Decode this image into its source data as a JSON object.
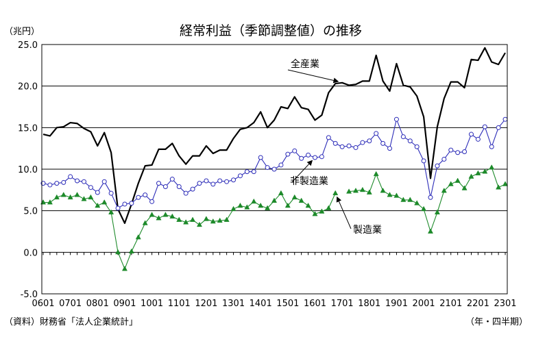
{
  "chart_data": {
    "type": "line",
    "title": "経常利益（季節調整値）の推移",
    "ylabel": "（兆円）",
    "xlabel": "（年・四半期）",
    "source": "（資料）財務省「法人企業統計」",
    "ylim": [
      -5,
      25
    ],
    "yticks": [
      25.0,
      20.0,
      15.0,
      10.0,
      5.0,
      0.0,
      -5.0
    ],
    "xticks": [
      "0601",
      "0701",
      "0801",
      "0901",
      "1001",
      "1101",
      "1201",
      "1301",
      "1401",
      "1501",
      "1601",
      "1701",
      "1801",
      "1901",
      "2001",
      "2101",
      "2201",
      "2301"
    ],
    "grid": true,
    "series": [
      {
        "name": "全産業",
        "color": "#000000",
        "marker": "none",
        "values": [
          14.2,
          14.0,
          15.0,
          15.1,
          15.6,
          15.5,
          14.9,
          14.5,
          12.8,
          14.4,
          12.0,
          5.2,
          3.5,
          5.8,
          8.3,
          10.4,
          10.5,
          12.4,
          12.4,
          13.1,
          11.6,
          10.6,
          11.6,
          11.6,
          12.8,
          11.9,
          12.3,
          12.3,
          13.7,
          14.8,
          15.0,
          15.6,
          16.9,
          15.0,
          15.9,
          17.5,
          17.3,
          18.7,
          17.4,
          17.2,
          15.9,
          16.5,
          19.2,
          20.3,
          20.4,
          20.1,
          20.2,
          20.6,
          20.6,
          23.7,
          20.6,
          19.4,
          22.7,
          20.1,
          19.9,
          18.8,
          16.3,
          8.9,
          15.1,
          18.5,
          20.5,
          20.5,
          19.8,
          23.2,
          23.1,
          24.6,
          22.9,
          22.6,
          24.0
        ]
      },
      {
        "name": "非製造業",
        "color": "#2b2bb8",
        "marker": "circle",
        "values": [
          8.3,
          8.1,
          8.3,
          8.4,
          9.1,
          8.6,
          8.5,
          7.8,
          7.2,
          8.5,
          7.1,
          5.3,
          5.8,
          5.9,
          6.6,
          6.9,
          6.1,
          8.3,
          7.9,
          8.8,
          7.9,
          7.1,
          7.6,
          8.3,
          8.6,
          8.2,
          8.6,
          8.5,
          8.7,
          9.2,
          9.7,
          9.7,
          11.4,
          10.2,
          10.0,
          10.5,
          11.8,
          12.2,
          11.3,
          11.7,
          11.4,
          11.5,
          13.8,
          13.1,
          12.7,
          12.8,
          12.6,
          13.2,
          13.4,
          14.3,
          13.1,
          12.5,
          16.0,
          13.9,
          13.4,
          12.7,
          11.0,
          6.6,
          10.4,
          11.2,
          12.3,
          12.0,
          12.1,
          14.2,
          13.6,
          15.1,
          12.7,
          15.0,
          16.0
        ]
      },
      {
        "name": "製造業",
        "color": "#1d8a2a",
        "marker": "triangle",
        "values": [
          6.0,
          6.0,
          6.6,
          6.9,
          6.6,
          6.9,
          6.4,
          6.6,
          5.6,
          6.0,
          4.8,
          0.0,
          -2.0,
          0.1,
          1.8,
          3.5,
          4.5,
          4.1,
          4.5,
          4.3,
          3.9,
          3.6,
          3.9,
          3.3,
          4.0,
          3.7,
          3.8,
          3.9,
          5.2,
          5.6,
          5.4,
          6.1,
          5.6,
          5.3,
          6.2,
          7.1,
          5.6,
          6.6,
          6.2,
          5.6,
          4.6,
          4.9,
          5.3,
          7.1,
          null,
          7.3,
          7.4,
          7.5,
          7.2,
          9.4,
          7.4,
          6.9,
          6.8,
          6.3,
          6.3,
          5.9,
          5.2,
          2.5,
          4.8,
          7.4,
          8.2,
          8.6,
          7.7,
          9.1,
          9.5,
          9.7,
          10.2,
          7.8,
          8.2
        ]
      }
    ],
    "annotations": [
      {
        "text": "全産業",
        "series": "全産業"
      },
      {
        "text": "非製造業",
        "series": "非製造業"
      },
      {
        "text": "製造業",
        "series": "製造業"
      }
    ]
  }
}
